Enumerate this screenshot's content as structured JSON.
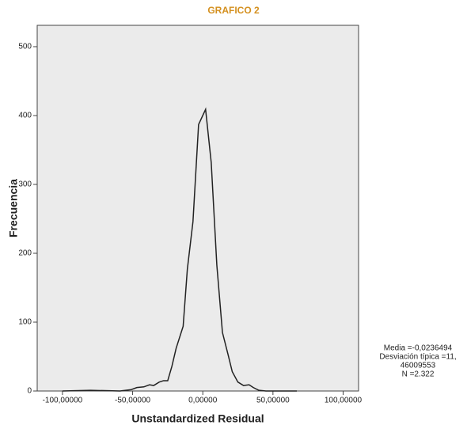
{
  "chart_data": {
    "type": "line",
    "title": "GRAFICO 2",
    "x_label": "Unstandardized Residual",
    "y_label": "Frecuencia",
    "annotation": [
      "Media =-0,0236494",
      "Desviación típica =11,",
      "46009553",
      "N =2.322"
    ],
    "x": [
      -100,
      -80,
      -59,
      -51,
      -47,
      -42,
      -38,
      -35,
      -31,
      -28,
      -25,
      -22,
      -19,
      -14,
      -11,
      -7,
      -3,
      2,
      6,
      10,
      14,
      18,
      21,
      25,
      29,
      33,
      36,
      40,
      45,
      67
    ],
    "series": [
      {
        "name": "Frecuencia",
        "color": "#222222",
        "values": [
          0,
          1,
          0,
          2,
          5,
          6,
          9,
          8,
          13,
          15,
          15,
          36,
          62,
          94,
          177,
          246,
          387,
          409,
          332,
          183,
          85,
          53,
          28,
          13,
          8,
          9,
          5,
          1,
          0,
          0
        ]
      }
    ],
    "xlim": [
      -118,
      111
    ],
    "ylim": [
      0,
      531
    ],
    "xticks": [
      {
        "value": -100,
        "label": "-100,00000"
      },
      {
        "value": -50,
        "label": "-50,00000"
      },
      {
        "value": 0,
        "label": "0,00000"
      },
      {
        "value": 50,
        "label": "50,00000"
      },
      {
        "value": 100,
        "label": "100,00000"
      }
    ],
    "yticks": [
      0,
      100,
      200,
      300,
      400,
      500
    ],
    "plot_background": "#ebebeb"
  }
}
